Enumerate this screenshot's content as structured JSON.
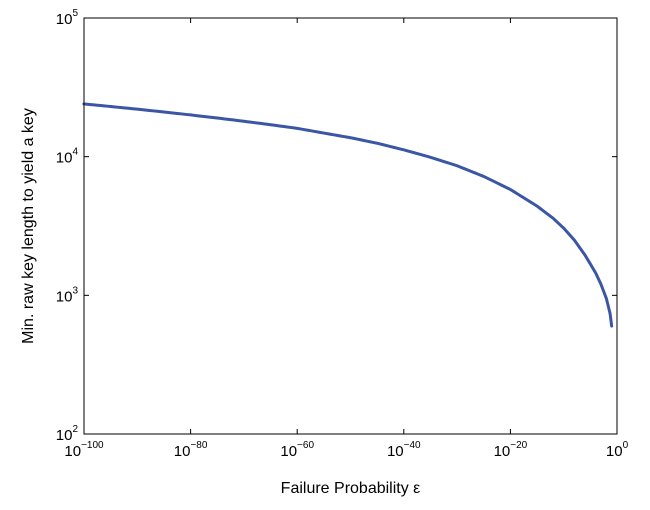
{
  "chart_data": {
    "type": "line",
    "title": "",
    "xlabel": "Failure Probability ε",
    "ylabel": "Min. raw key length to yield a key",
    "x_scale": "log",
    "y_scale": "log",
    "xlim": [
      1e-100,
      1
    ],
    "ylim": [
      100,
      100000
    ],
    "grid": false,
    "legend": "none",
    "x_ticks": [
      {
        "base": "10",
        "exp": "−100",
        "value": 1e-100
      },
      {
        "base": "10",
        "exp": "−80",
        "value": 1e-80
      },
      {
        "base": "10",
        "exp": "−60",
        "value": 1e-60
      },
      {
        "base": "10",
        "exp": "−40",
        "value": 1e-40
      },
      {
        "base": "10",
        "exp": "−20",
        "value": 1e-20
      },
      {
        "base": "10",
        "exp": "0",
        "value": 1
      }
    ],
    "y_ticks": [
      {
        "base": "10",
        "exp": "2",
        "value": 100
      },
      {
        "base": "10",
        "exp": "3",
        "value": 1000
      },
      {
        "base": "10",
        "exp": "4",
        "value": 10000
      },
      {
        "base": "10",
        "exp": "5",
        "value": 100000
      }
    ],
    "series": [
      {
        "color": "#3a56a4",
        "x": [
          1e-100,
          1e-95,
          1e-90,
          1e-85,
          1e-80,
          1e-75,
          1e-70,
          1e-65,
          1e-60,
          1e-55,
          1e-50,
          1e-45,
          1e-40,
          1e-35,
          1e-30,
          1e-25,
          1e-20,
          1e-15,
          1e-12,
          1e-10,
          1e-08,
          1e-06,
          0.0001,
          0.001,
          0.01,
          0.05,
          0.1
        ],
        "values": [
          24000,
          23000,
          22000,
          21000,
          20000,
          19000,
          18000,
          17000,
          16000,
          14800,
          13700,
          12500,
          11200,
          9900,
          8600,
          7200,
          5800,
          4400,
          3600,
          3050,
          2500,
          1950,
          1450,
          1200,
          950,
          740,
          600
        ]
      }
    ]
  }
}
